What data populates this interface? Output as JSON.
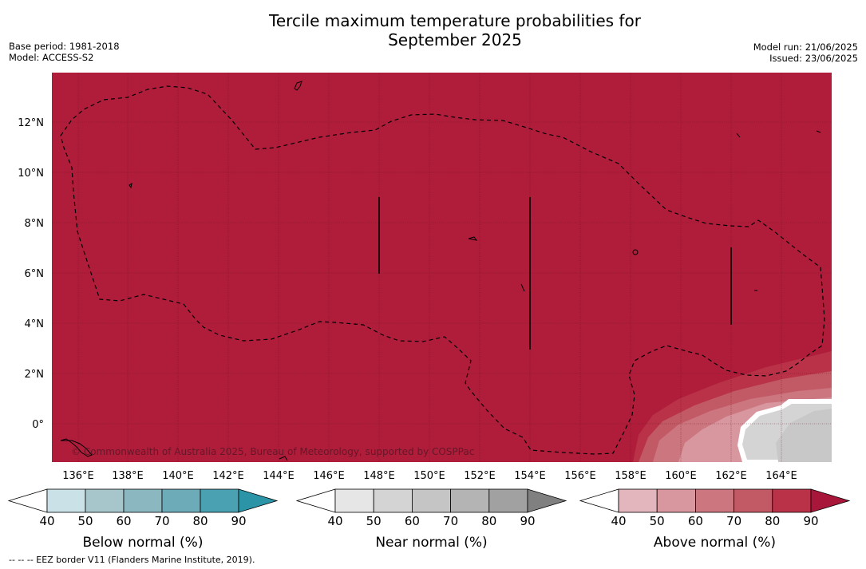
{
  "header": {
    "title_line1": "Tercile maximum temperature probabilities for",
    "title_line2": "September 2025",
    "base_period": "Base period: 1981-2018",
    "model": "Model: ACCESS-S2",
    "model_run": "Model run: 21/06/2025",
    "issued": "Issued: 23/06/2025"
  },
  "map": {
    "credit": "© Commonwealth of Australia 2025, Bureau of Meteorology, supported by COSPPac",
    "lat_labels": [
      "12°N",
      "10°N",
      "8°N",
      "6°N",
      "4°N",
      "2°N",
      "0°"
    ],
    "lon_labels": [
      "136°E",
      "138°E",
      "140°E",
      "142°E",
      "144°E",
      "146°E",
      "148°E",
      "150°E",
      "152°E",
      "154°E",
      "156°E",
      "158°E",
      "160°E",
      "162°E",
      "164°E"
    ],
    "background_color": "#b01d3b"
  },
  "colorbars": [
    {
      "name": "below",
      "label": "Below normal (%)",
      "ticks": [
        "40",
        "50",
        "60",
        "70",
        "80",
        "90"
      ],
      "colors": [
        "#c9e1e7",
        "#a7c6cc",
        "#8bb7c1",
        "#6eabb8",
        "#49a1b1",
        "#2b95a7"
      ]
    },
    {
      "name": "near",
      "label": "Near normal (%)",
      "ticks": [
        "40",
        "50",
        "60",
        "70",
        "80",
        "90"
      ],
      "colors": [
        "#e6e6e6",
        "#d4d4d4",
        "#c5c5c5",
        "#b4b4b4",
        "#a1a1a1",
        "#808080"
      ]
    },
    {
      "name": "above",
      "label": "Above normal (%)",
      "ticks": [
        "40",
        "50",
        "60",
        "70",
        "80",
        "90"
      ],
      "colors": [
        "#e2b6bc",
        "#d8979f",
        "#cc7680",
        "#c25a66",
        "#b93248",
        "#a8163a"
      ]
    }
  ],
  "footer": "--  --  -- EEZ border V11 (Flanders Marine Institute, 2019)."
}
